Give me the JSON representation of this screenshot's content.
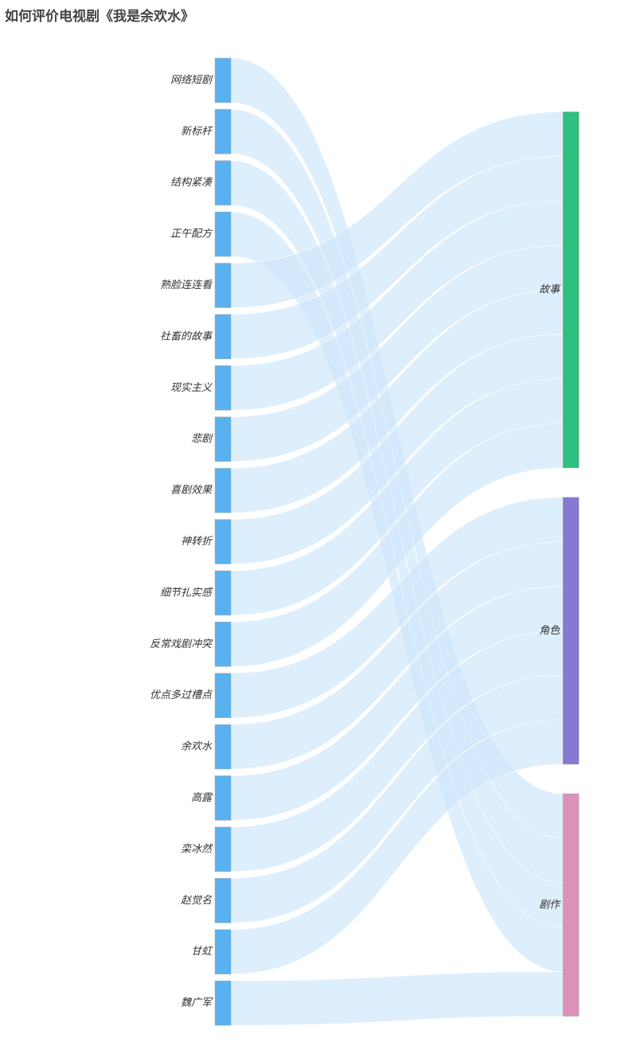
{
  "title": "如何评价电视剧《我是余欢水》",
  "chart_data": {
    "type": "sankey",
    "title": "如何评价电视剧《我是余欢水》",
    "colors": {
      "source_node": "#5ab1ef",
      "link": "#cfe7fb",
      "故事": "#2ec07e",
      "角色": "#8579d2",
      "剧作": "#dc91b8"
    },
    "sources": [
      "网络短剧",
      "新标杆",
      "结构紧凑",
      "正午配方",
      "熟脸连连看",
      "社畜的故事",
      "现实主义",
      "悲剧",
      "喜剧效果",
      "神转折",
      "细节扎实感",
      "反常戏剧冲突",
      "优点多过槽点",
      "余欢水",
      "高露",
      "栾冰然",
      "赵觉名",
      "甘虹",
      "魏广军"
    ],
    "targets": [
      "故事",
      "角色",
      "剧作"
    ],
    "links": [
      {
        "source": "熟脸连连看",
        "target": "故事",
        "value": 1
      },
      {
        "source": "社畜的故事",
        "target": "故事",
        "value": 1
      },
      {
        "source": "现实主义",
        "target": "故事",
        "value": 1
      },
      {
        "source": "悲剧",
        "target": "故事",
        "value": 1
      },
      {
        "source": "喜剧效果",
        "target": "故事",
        "value": 1
      },
      {
        "source": "神转折",
        "target": "故事",
        "value": 1
      },
      {
        "source": "细节扎实感",
        "target": "故事",
        "value": 1
      },
      {
        "source": "反常戏剧冲突",
        "target": "故事",
        "value": 1
      },
      {
        "source": "优点多过槽点",
        "target": "角色",
        "value": 1
      },
      {
        "source": "余欢水",
        "target": "角色",
        "value": 1
      },
      {
        "source": "高露",
        "target": "角色",
        "value": 1
      },
      {
        "source": "栾冰然",
        "target": "角色",
        "value": 1
      },
      {
        "source": "赵觉名",
        "target": "角色",
        "value": 1
      },
      {
        "source": "甘虹",
        "target": "角色",
        "value": 1
      },
      {
        "source": "魏广军",
        "target": "剧作",
        "value": 1
      },
      {
        "source": "网络短剧",
        "target": "剧作",
        "value": 1
      },
      {
        "source": "新标杆",
        "target": "剧作",
        "value": 1
      },
      {
        "source": "结构紧凑",
        "target": "剧作",
        "value": 1
      },
      {
        "source": "正午配方",
        "target": "剧作",
        "value": 1
      }
    ]
  }
}
